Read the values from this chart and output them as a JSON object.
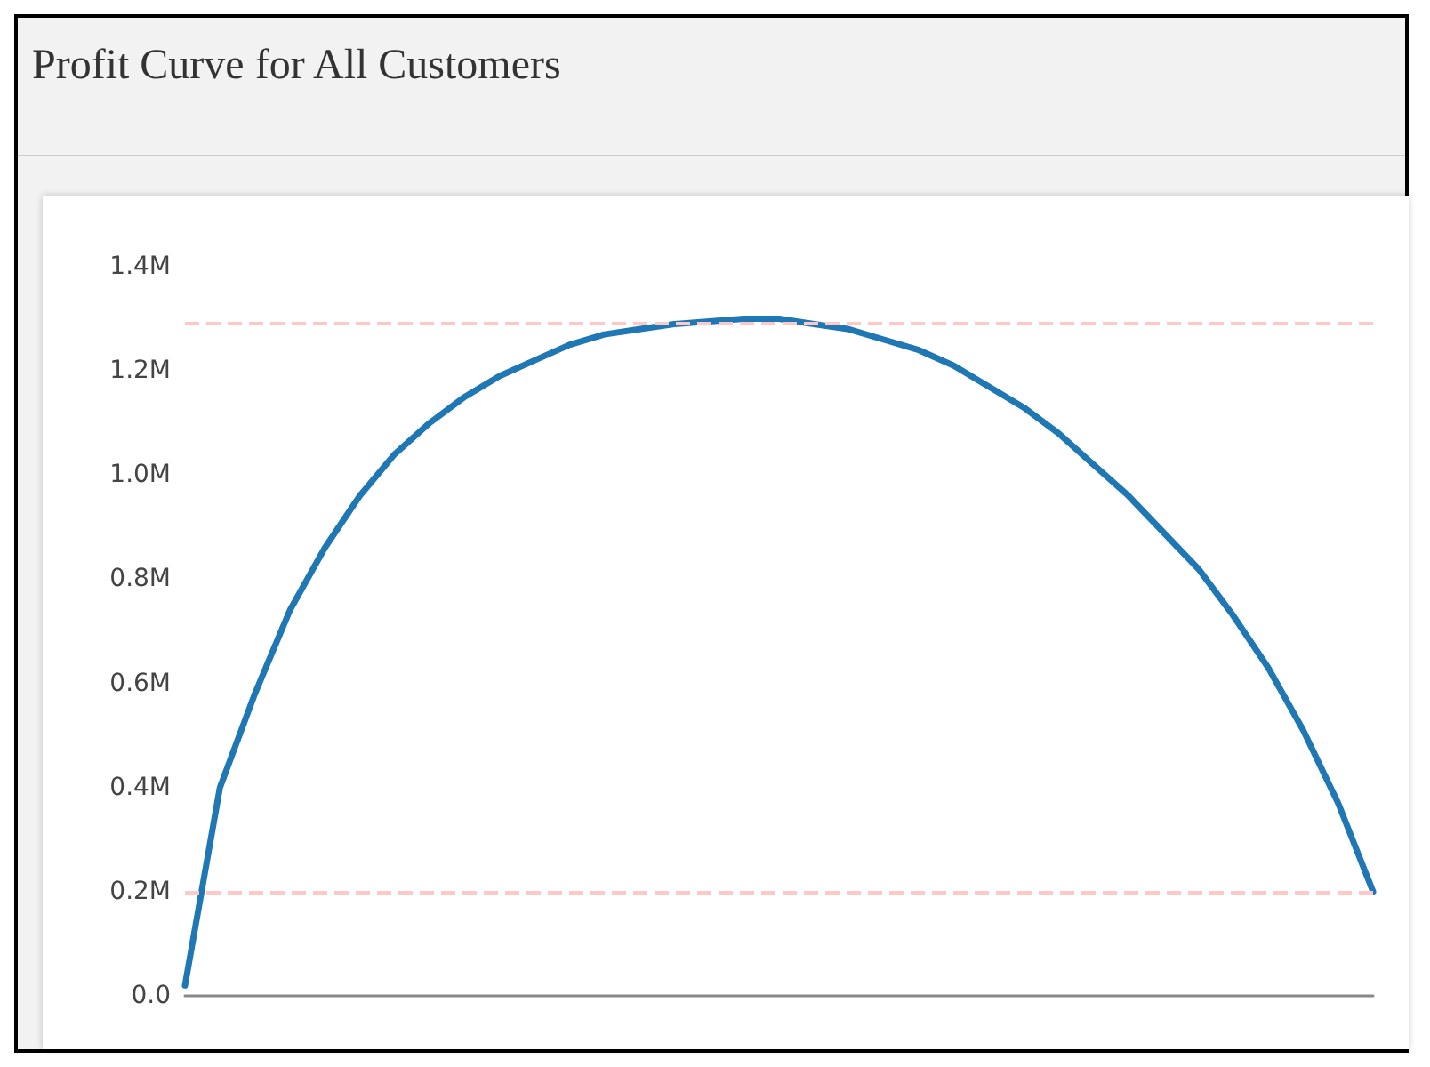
{
  "chart_data": {
    "type": "line",
    "title": "Profit Curve for All Customers",
    "categories": [
      null,
      null,
      null,
      null,
      null,
      null,
      null,
      null,
      null,
      null,
      null,
      null,
      null,
      null,
      null,
      null,
      null,
      null,
      null,
      null,
      null,
      null,
      null,
      null,
      null,
      null,
      null,
      null,
      null,
      null,
      null,
      null,
      null,
      null,
      null
    ],
    "series": [
      {
        "color": "#1f77b4",
        "values": [
          20000,
          400000,
          580000,
          740000,
          860000,
          960000,
          1040000,
          1100000,
          1150000,
          1190000,
          1220000,
          1250000,
          1270000,
          1280000,
          1290000,
          1295000,
          1300000,
          1300000,
          1290000,
          1280000,
          1260000,
          1240000,
          1210000,
          1170000,
          1130000,
          1080000,
          1020000,
          960000,
          890000,
          820000,
          730000,
          630000,
          510000,
          370000,
          200000
        ]
      }
    ],
    "ylim": [
      0,
      1400000
    ],
    "yticks": [
      {
        "value": 0,
        "label": "0.0"
      },
      {
        "value": 200000,
        "label": "0.2M"
      },
      {
        "value": 400000,
        "label": "0.4M"
      },
      {
        "value": 600000,
        "label": "0.6M"
      },
      {
        "value": 800000,
        "label": "0.8M"
      },
      {
        "value": 1000000,
        "label": "1.0M"
      },
      {
        "value": 1200000,
        "label": "1.2M"
      },
      {
        "value": 1400000,
        "label": "1.4M"
      }
    ],
    "ref_lines": [
      {
        "axis": "y",
        "value": 1290000,
        "color": "#ffc8c8",
        "line_style": "dashed"
      },
      {
        "axis": "y",
        "value": 200000,
        "color": "#ffc8c8",
        "line_style": "dashed"
      }
    ],
    "grid": false,
    "marker": "none",
    "line_style": "solid"
  }
}
